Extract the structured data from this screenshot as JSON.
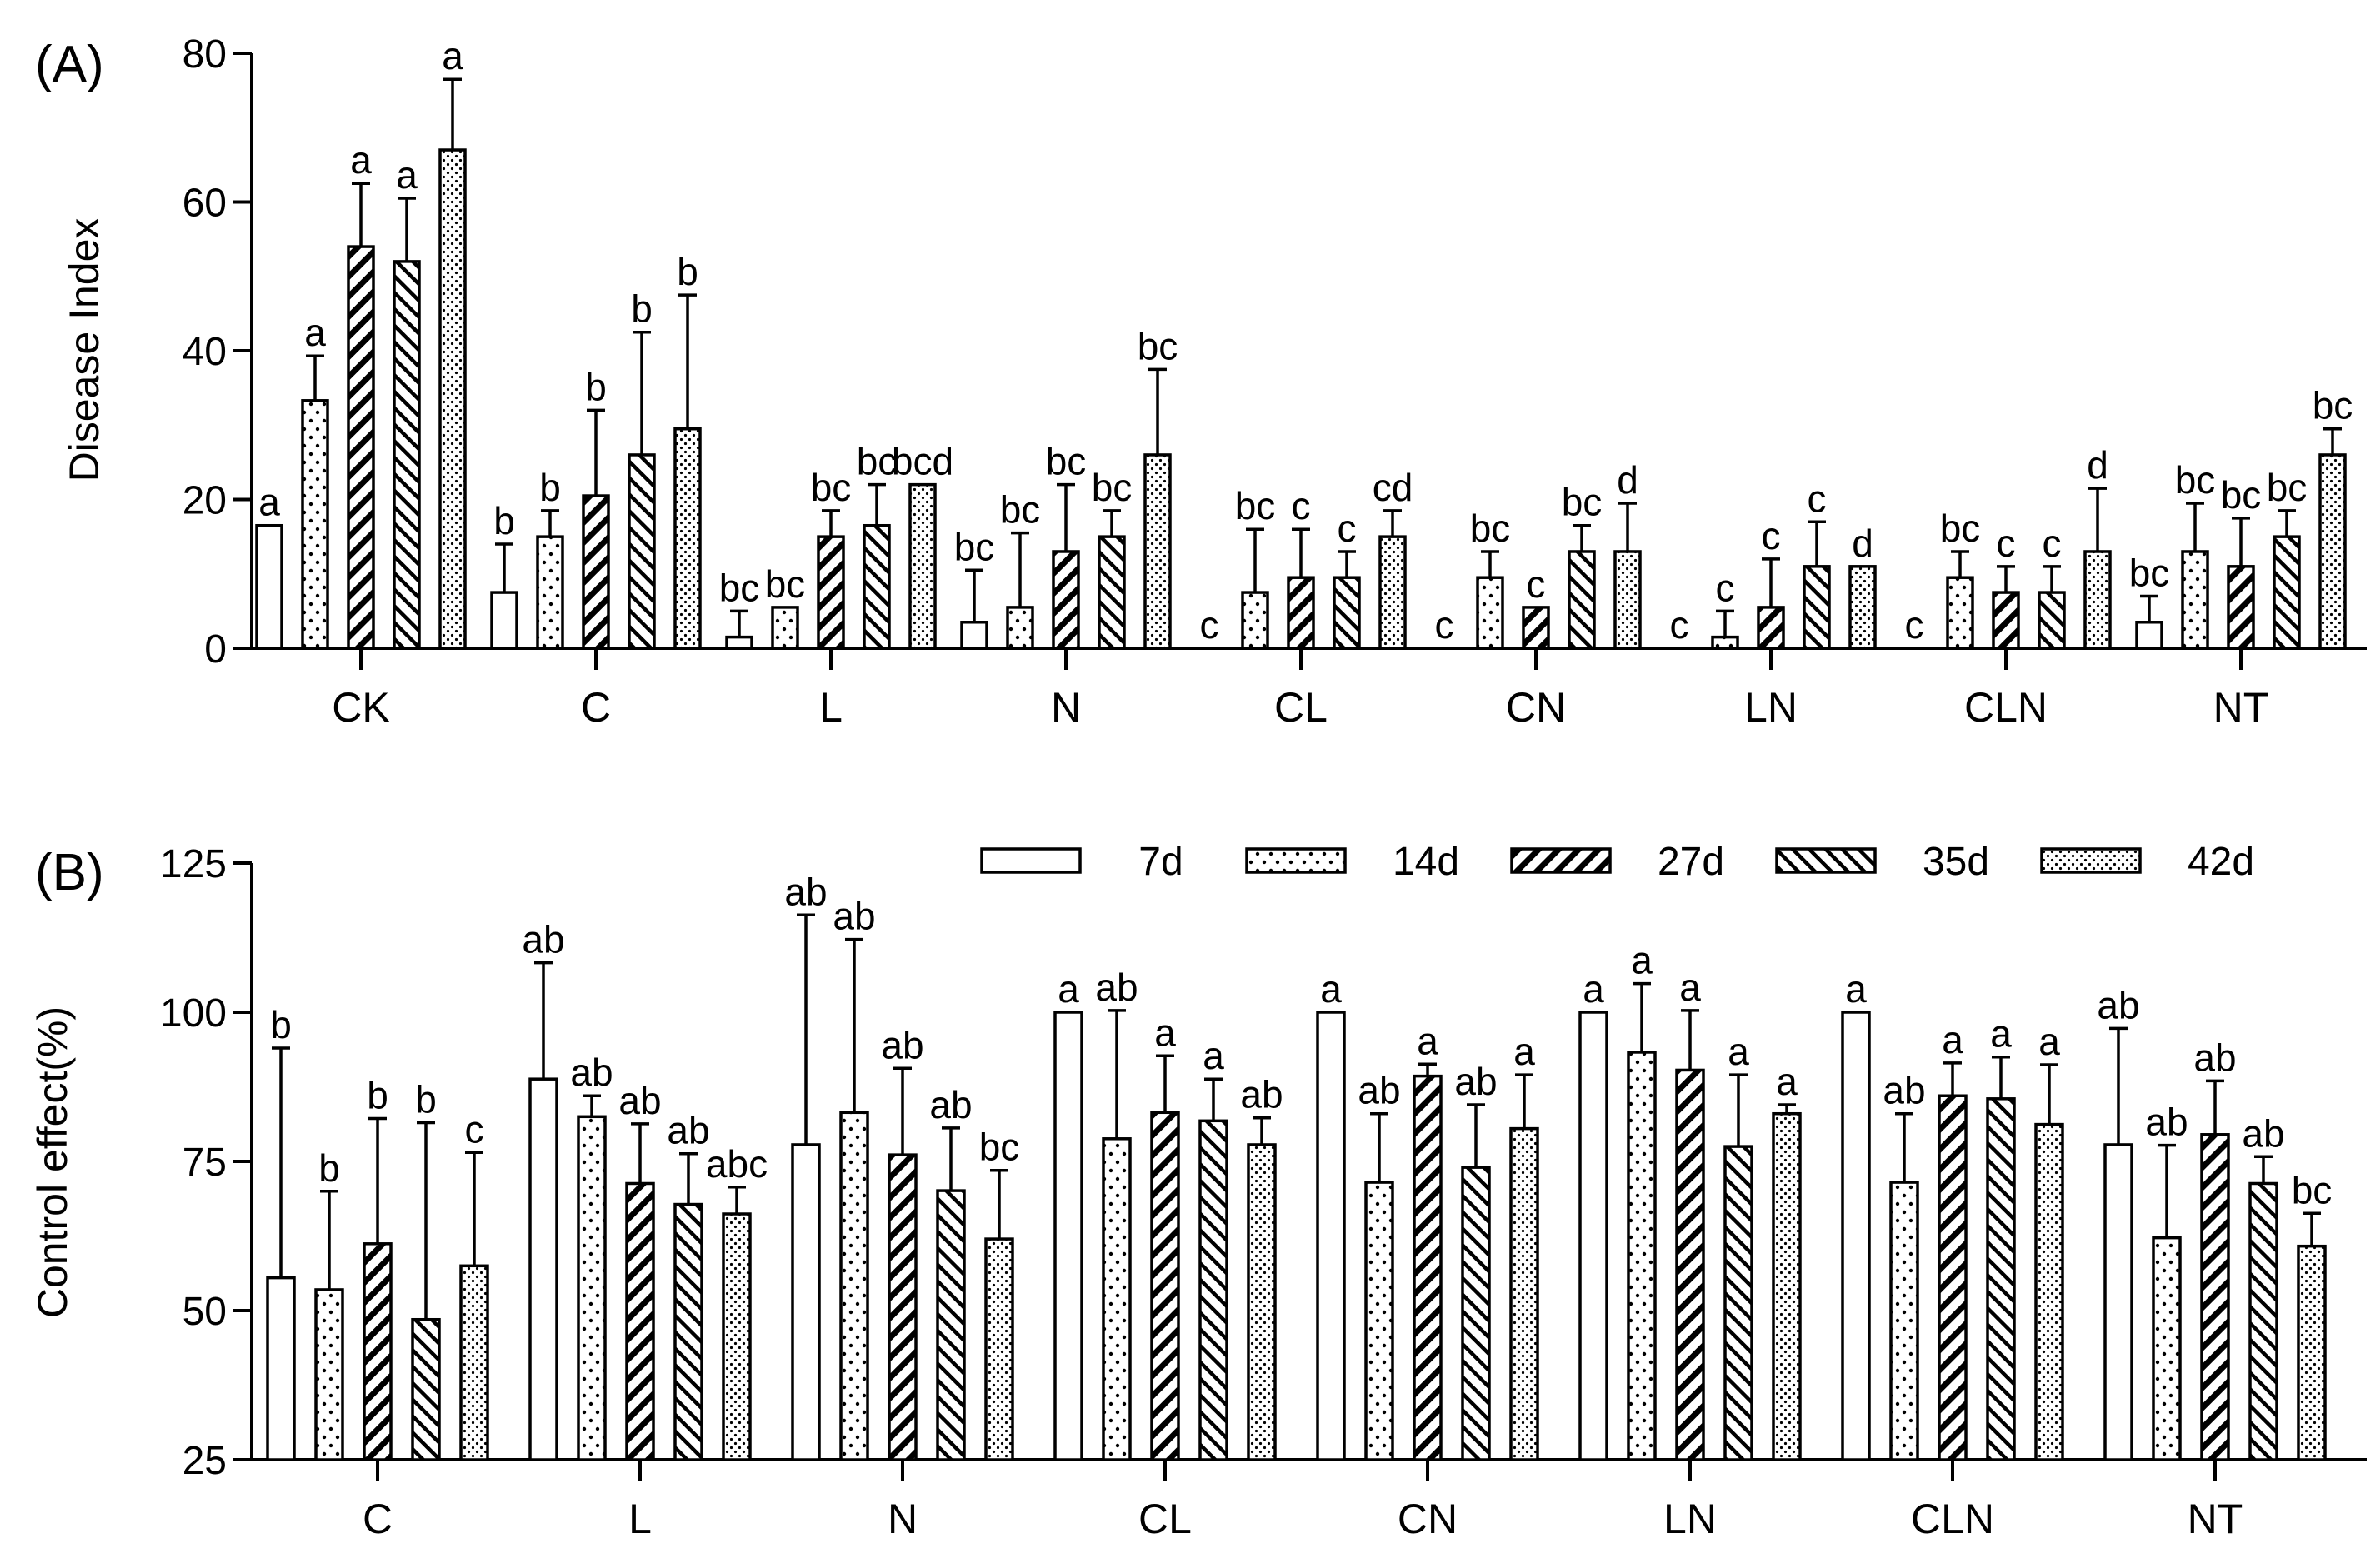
{
  "chart_data": [
    {
      "type": "bar",
      "panel": "(A)",
      "ylabel": "Disease Index",
      "xlabel": "",
      "ylim": [
        0,
        80
      ],
      "yticks": [
        0,
        20,
        40,
        60,
        80
      ],
      "categories": [
        "CK",
        "C",
        "L",
        "N",
        "CL",
        "CN",
        "LN",
        "CLN",
        "NT"
      ],
      "series": [
        {
          "name": "7d",
          "values": [
            16.5,
            7.5,
            1.5,
            3.5,
            0,
            0,
            0,
            0,
            3.5
          ],
          "errors": [
            0,
            6.5,
            3.5,
            7,
            0,
            0,
            0,
            0,
            3.5
          ],
          "letters": [
            "a",
            "b",
            "bc",
            "bc",
            "c",
            "c",
            "c",
            "c",
            "bc"
          ]
        },
        {
          "name": "14d",
          "values": [
            33.3,
            15,
            5.5,
            5.5,
            7.5,
            9.5,
            1.5,
            9.5,
            13
          ],
          "errors": [
            6,
            3.5,
            0,
            10,
            8.5,
            3.5,
            3.5,
            3.5,
            6.5
          ],
          "letters": [
            "a",
            "b",
            "bc",
            "bc",
            "bc",
            "bc",
            "c",
            "bc",
            "bc"
          ]
        },
        {
          "name": "27d",
          "values": [
            54,
            20.5,
            15,
            13,
            9.5,
            5.5,
            5.5,
            7.5,
            11
          ],
          "errors": [
            8.5,
            11.5,
            3.5,
            9,
            6.5,
            0,
            6.5,
            3.5,
            6.5
          ],
          "letters": [
            "a",
            "b",
            "bc",
            "bc",
            "c",
            "c",
            "c",
            "c",
            "bc"
          ]
        },
        {
          "name": "35d",
          "values": [
            52,
            26,
            16.5,
            15,
            9.5,
            13,
            11,
            7.5,
            15
          ],
          "errors": [
            8.5,
            16.5,
            5.5,
            3.5,
            3.5,
            3.5,
            6,
            3.5,
            3.5
          ],
          "letters": [
            "a",
            "b",
            "bc",
            "bc",
            "c",
            "bc",
            "c",
            "c",
            "bc"
          ]
        },
        {
          "name": "42d",
          "values": [
            67,
            29.5,
            22,
            26,
            15,
            13,
            11,
            13,
            26
          ],
          "errors": [
            9.5,
            18,
            0,
            11.5,
            3.5,
            6.5,
            0,
            8.5,
            3.5
          ],
          "letters": [
            "a",
            "b",
            "bcd",
            "bc",
            "cd",
            "d",
            "d",
            "d",
            "bc"
          ]
        }
      ]
    },
    {
      "type": "bar",
      "panel": "(B)",
      "ylabel": "Control effect(%)",
      "xlabel": "",
      "ylim": [
        25,
        125
      ],
      "yticks": [
        25,
        50,
        75,
        100,
        125
      ],
      "categories": [
        "C",
        "L",
        "N",
        "CL",
        "CN",
        "LN",
        "CLN",
        "NT"
      ],
      "legend": {
        "position": "top-right",
        "entries": [
          "7d",
          "14d",
          "27d",
          "35d",
          "42d"
        ]
      },
      "series": [
        {
          "name": "7d",
          "values": [
            55.5,
            88.8,
            77.8,
            100,
            100,
            100,
            100,
            77.8
          ],
          "errors": [
            38.5,
            19.5,
            38.5,
            0,
            0,
            0,
            0,
            19.5
          ],
          "letters": [
            "b",
            "ab",
            "ab",
            "a",
            "a",
            "a",
            "a",
            "ab"
          ]
        },
        {
          "name": "14d",
          "values": [
            53.5,
            82.5,
            83.2,
            78.8,
            71.5,
            93.3,
            71.5,
            62.2
          ],
          "errors": [
            16.5,
            3.5,
            29,
            21.5,
            11.5,
            11.5,
            11.5,
            15.5
          ],
          "letters": [
            "b",
            "ab",
            "ab",
            "ab",
            "ab",
            "a",
            "ab",
            "ab"
          ]
        },
        {
          "name": "27d",
          "values": [
            61.2,
            71.3,
            76.1,
            83.2,
            89.3,
            90.3,
            86,
            79.5
          ],
          "errors": [
            21,
            10,
            14.5,
            9.5,
            2,
            10,
            5.5,
            9
          ],
          "letters": [
            "b",
            "ab",
            "ab",
            "a",
            "a",
            "a",
            "a",
            "ab"
          ]
        },
        {
          "name": "35d",
          "values": [
            48.5,
            67.8,
            70.1,
            81.8,
            74,
            77.5,
            85.5,
            71.3
          ],
          "errors": [
            33,
            8.5,
            10.5,
            7,
            10.5,
            12,
            7,
            4.5
          ],
          "letters": [
            "b",
            "ab",
            "ab",
            "a",
            "ab",
            "a",
            "a",
            "ab"
          ]
        },
        {
          "name": "42d",
          "values": [
            57.5,
            66.2,
            62,
            77.8,
            80.5,
            83,
            81.2,
            60.8
          ],
          "errors": [
            19,
            4.5,
            11.5,
            4.5,
            9,
            1.5,
            10,
            5.5
          ],
          "letters": [
            "c",
            "abc",
            "bc",
            "ab",
            "a",
            "a",
            "a",
            "bc"
          ]
        }
      ]
    }
  ]
}
